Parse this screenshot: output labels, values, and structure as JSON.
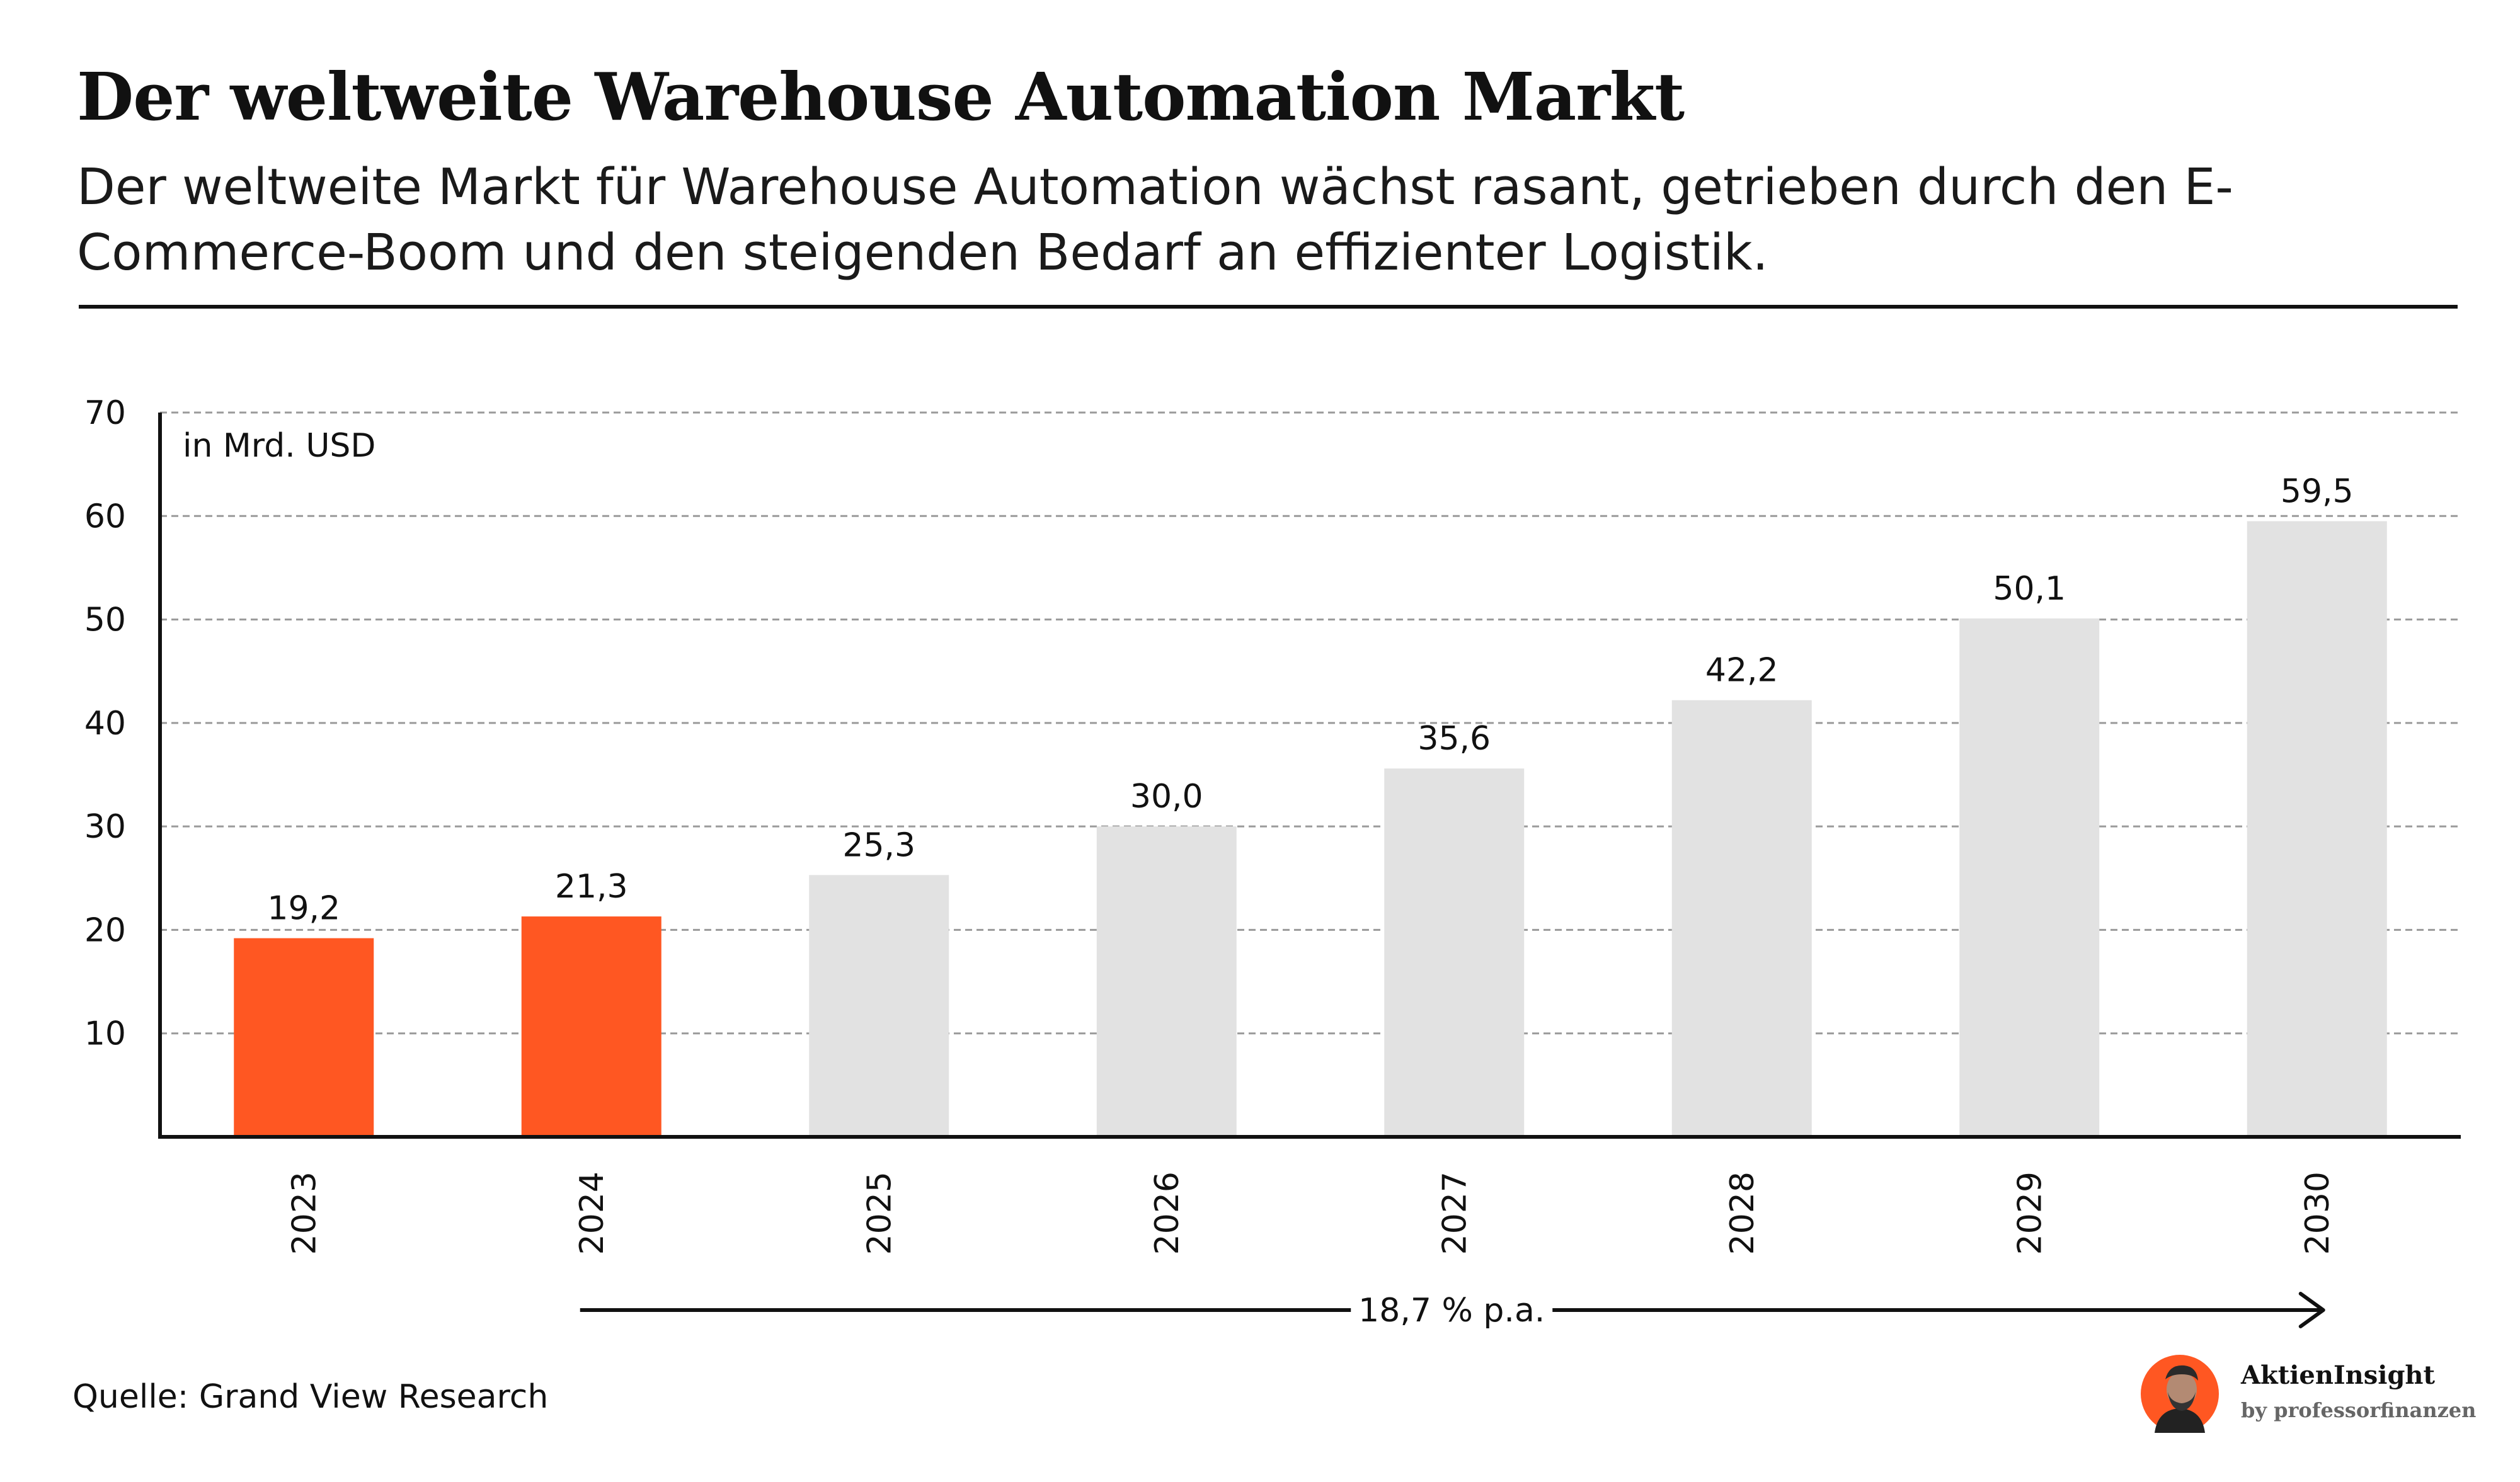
{
  "header": {
    "title": "Der weltweite Warehouse Automation Markt",
    "subtitle": "Der weltweite Markt für Warehouse Automation wächst rasant, getrieben durch den E-Commerce-Boom und den steigenden Bedarf an effizienter Logistik."
  },
  "chart_data": {
    "type": "bar",
    "title": "",
    "unit_label": "in Mrd. USD",
    "xlabel": "",
    "ylabel": "",
    "categories": [
      "2023",
      "2024",
      "2025",
      "2026",
      "2027",
      "2028",
      "2029",
      "2030"
    ],
    "values": [
      19.2,
      21.3,
      25.3,
      30.0,
      35.6,
      42.2,
      50.1,
      59.5
    ],
    "value_labels": [
      "19,2",
      "21,3",
      "25,3",
      "30,0",
      "35,6",
      "42,2",
      "50,1",
      "59,5"
    ],
    "bar_colors": [
      "#ff5722",
      "#ff5722",
      "#e2e2e2",
      "#e2e2e2",
      "#e2e2e2",
      "#e2e2e2",
      "#e2e2e2",
      "#e2e2e2"
    ],
    "ylim": [
      0,
      70
    ],
    "yticks": [
      10,
      20,
      30,
      40,
      50,
      60,
      70
    ],
    "grid": true,
    "growth_annotation": {
      "label": "18,7 % p.a.",
      "from_category": "2024",
      "to_category": "2030"
    }
  },
  "footer": {
    "source": "Quelle: Grand View Research",
    "brand_name": "AktienInsight",
    "brand_sub": "by professorfinanzen"
  },
  "colors": {
    "actual": "#ff5722",
    "forecast": "#e2e2e2",
    "text": "#111111",
    "grid": "#9a9a9a"
  }
}
